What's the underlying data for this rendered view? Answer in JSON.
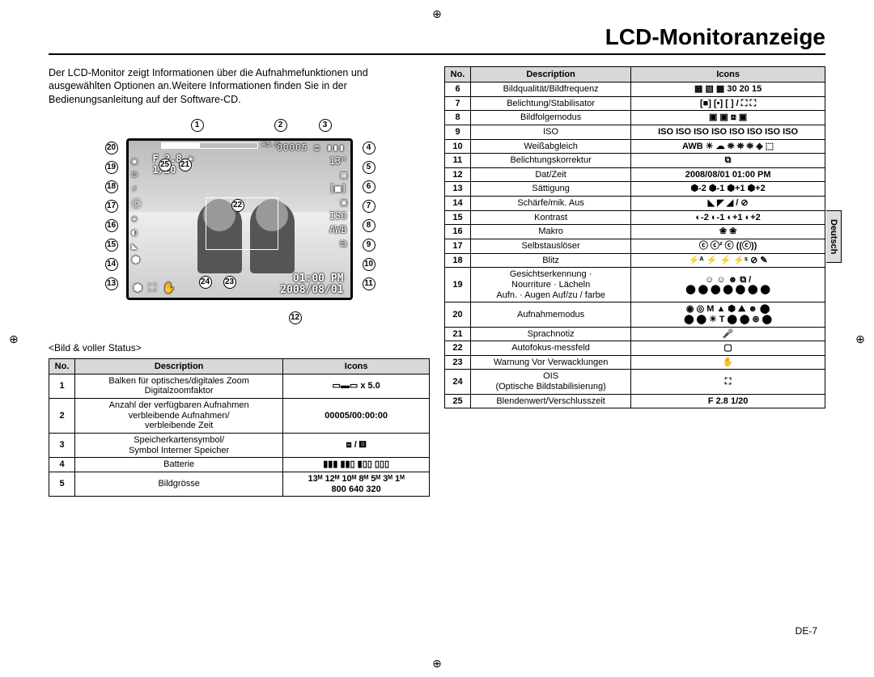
{
  "title": "LCD-Monitoranzeige",
  "intro": "Der LCD-Monitor zeigt Informationen über die Aufnahmefunktionen und ausgewählten Optionen an.Weitere Informationen finden Sie in der Bedienungsanleitung auf der Software-CD.",
  "caption": "<Bild & voller Status>",
  "lang_tab": "Deutsch",
  "page_number": "DE-7",
  "lcd": {
    "zoom_text": "X5.0",
    "counter": "00005",
    "aperture": "F 2.8",
    "shutter": "1/20",
    "time": "01:00 PM",
    "date": "2008/08/01"
  },
  "callouts_top": [
    "1",
    "2",
    "3"
  ],
  "callouts_right": [
    "4",
    "5",
    "6",
    "7",
    "8",
    "9",
    "10",
    "11"
  ],
  "callouts_bottom": [
    "12"
  ],
  "callouts_left": [
    "20",
    "19",
    "18",
    "17",
    "16",
    "15",
    "14",
    "13"
  ],
  "callouts_inner": [
    "21",
    "22",
    "23",
    "24",
    "25"
  ],
  "table_headers": {
    "no": "No.",
    "desc": "Description",
    "icons": "Icons"
  },
  "left_table": [
    {
      "no": "1",
      "desc": "Balken für optisches/digitales Zoom\nDigitalzoomfaktor",
      "icons": "▭▬▭   x 5.0"
    },
    {
      "no": "2",
      "desc": "Anzahl der verfügbaren Aufnahmen\nverbleibende Aufnahmen/\nverbleibende Zeit",
      "icons": "00005/00:00:00"
    },
    {
      "no": "3",
      "desc": "Speicherkartensymbol/\nSymbol Interner Speicher",
      "icons": "⧈ / ▥"
    },
    {
      "no": "4",
      "desc": "Batterie",
      "icons": "▮▮▮ ▮▮▯ ▮▯▯ ▯▯▯"
    },
    {
      "no": "5",
      "desc": "Bildgrösse",
      "icons": "13ᴹ 12ᴹ 10ᴹ 8ᴹ 5ᴹ 3ᴹ 1ᴹ\n800 640 320"
    }
  ],
  "right_table": [
    {
      "no": "6",
      "desc": "Bildqualität/Bildfrequenz",
      "icons": "▦ ▨ ▩ 30 20 15"
    },
    {
      "no": "7",
      "desc": "Belichtung/Stabilisator",
      "icons": "[■] [•] [ ] / ⛶ ⛶"
    },
    {
      "no": "8",
      "desc": "Bildfolgemodus",
      "icons": "▣ ▣ ⧈ ▣"
    },
    {
      "no": "9",
      "desc": "ISO",
      "icons": "ISO ISO ISO ISO ISO ISO ISO ISO"
    },
    {
      "no": "10",
      "desc": "Weißabgleich",
      "icons": "AWB ☀ ☁ ⛯ ⛯ ⛯ ◈ ⬚"
    },
    {
      "no": "11",
      "desc": "Belichtungskorrektur",
      "icons": "⧉"
    },
    {
      "no": "12",
      "desc": "Dat/Zeit",
      "icons": "2008/08/01 01:00 PM"
    },
    {
      "no": "13",
      "desc": "Sättigung",
      "icons": "⬢-2 ⬢-1 ⬢+1 ⬢+2"
    },
    {
      "no": "14",
      "desc": "Schärfe/mik. Aus",
      "icons": "◣ ◤ ◢ / ⊘"
    },
    {
      "no": "15",
      "desc": "Kontrast",
      "icons": "◐-2 ◐-1 ◐+1 ◐+2"
    },
    {
      "no": "16",
      "desc": "Makro",
      "icons": "❀ ❀"
    },
    {
      "no": "17",
      "desc": "Selbstauslöser",
      "icons": "ⓒ ⓒ² ⓒ ((ⓒ))"
    },
    {
      "no": "18",
      "desc": "Blitz",
      "icons": "⚡ᴬ ⚡ ⚡ ⚡ˢ ⊘ ✎"
    },
    {
      "no": "19",
      "desc": "Gesichtserkennung ·\nNourriture · Lächeln\nAufn. · Augen Auf/zu / farbe",
      "icons": "☺ ☺ ☻ ⧉ /\n⬤ ⬤ ⬤ ⬤ ⬤ ⬤ ⬤"
    },
    {
      "no": "20",
      "desc": "Aufnahmemodus",
      "icons": "◉ ◎ M ▲ ⬢ ⛰ ☻ ⬤\n⬤ ⬤ ☀ T ⬤ ⬤ ⊛ ⬤"
    },
    {
      "no": "21",
      "desc": "Sprachnotiz",
      "icons": "🎤"
    },
    {
      "no": "22",
      "desc": "Autofokus-messfeld",
      "icons": "▢"
    },
    {
      "no": "23",
      "desc": "Warnung Vor Verwacklungen",
      "icons": "✋"
    },
    {
      "no": "24",
      "desc": "OIS\n(Optische Bildstabilisierung)",
      "icons": "⛶"
    },
    {
      "no": "25",
      "desc": "Blendenwert/Verschlusszeit",
      "icons": "F 2.8 1/20"
    }
  ]
}
